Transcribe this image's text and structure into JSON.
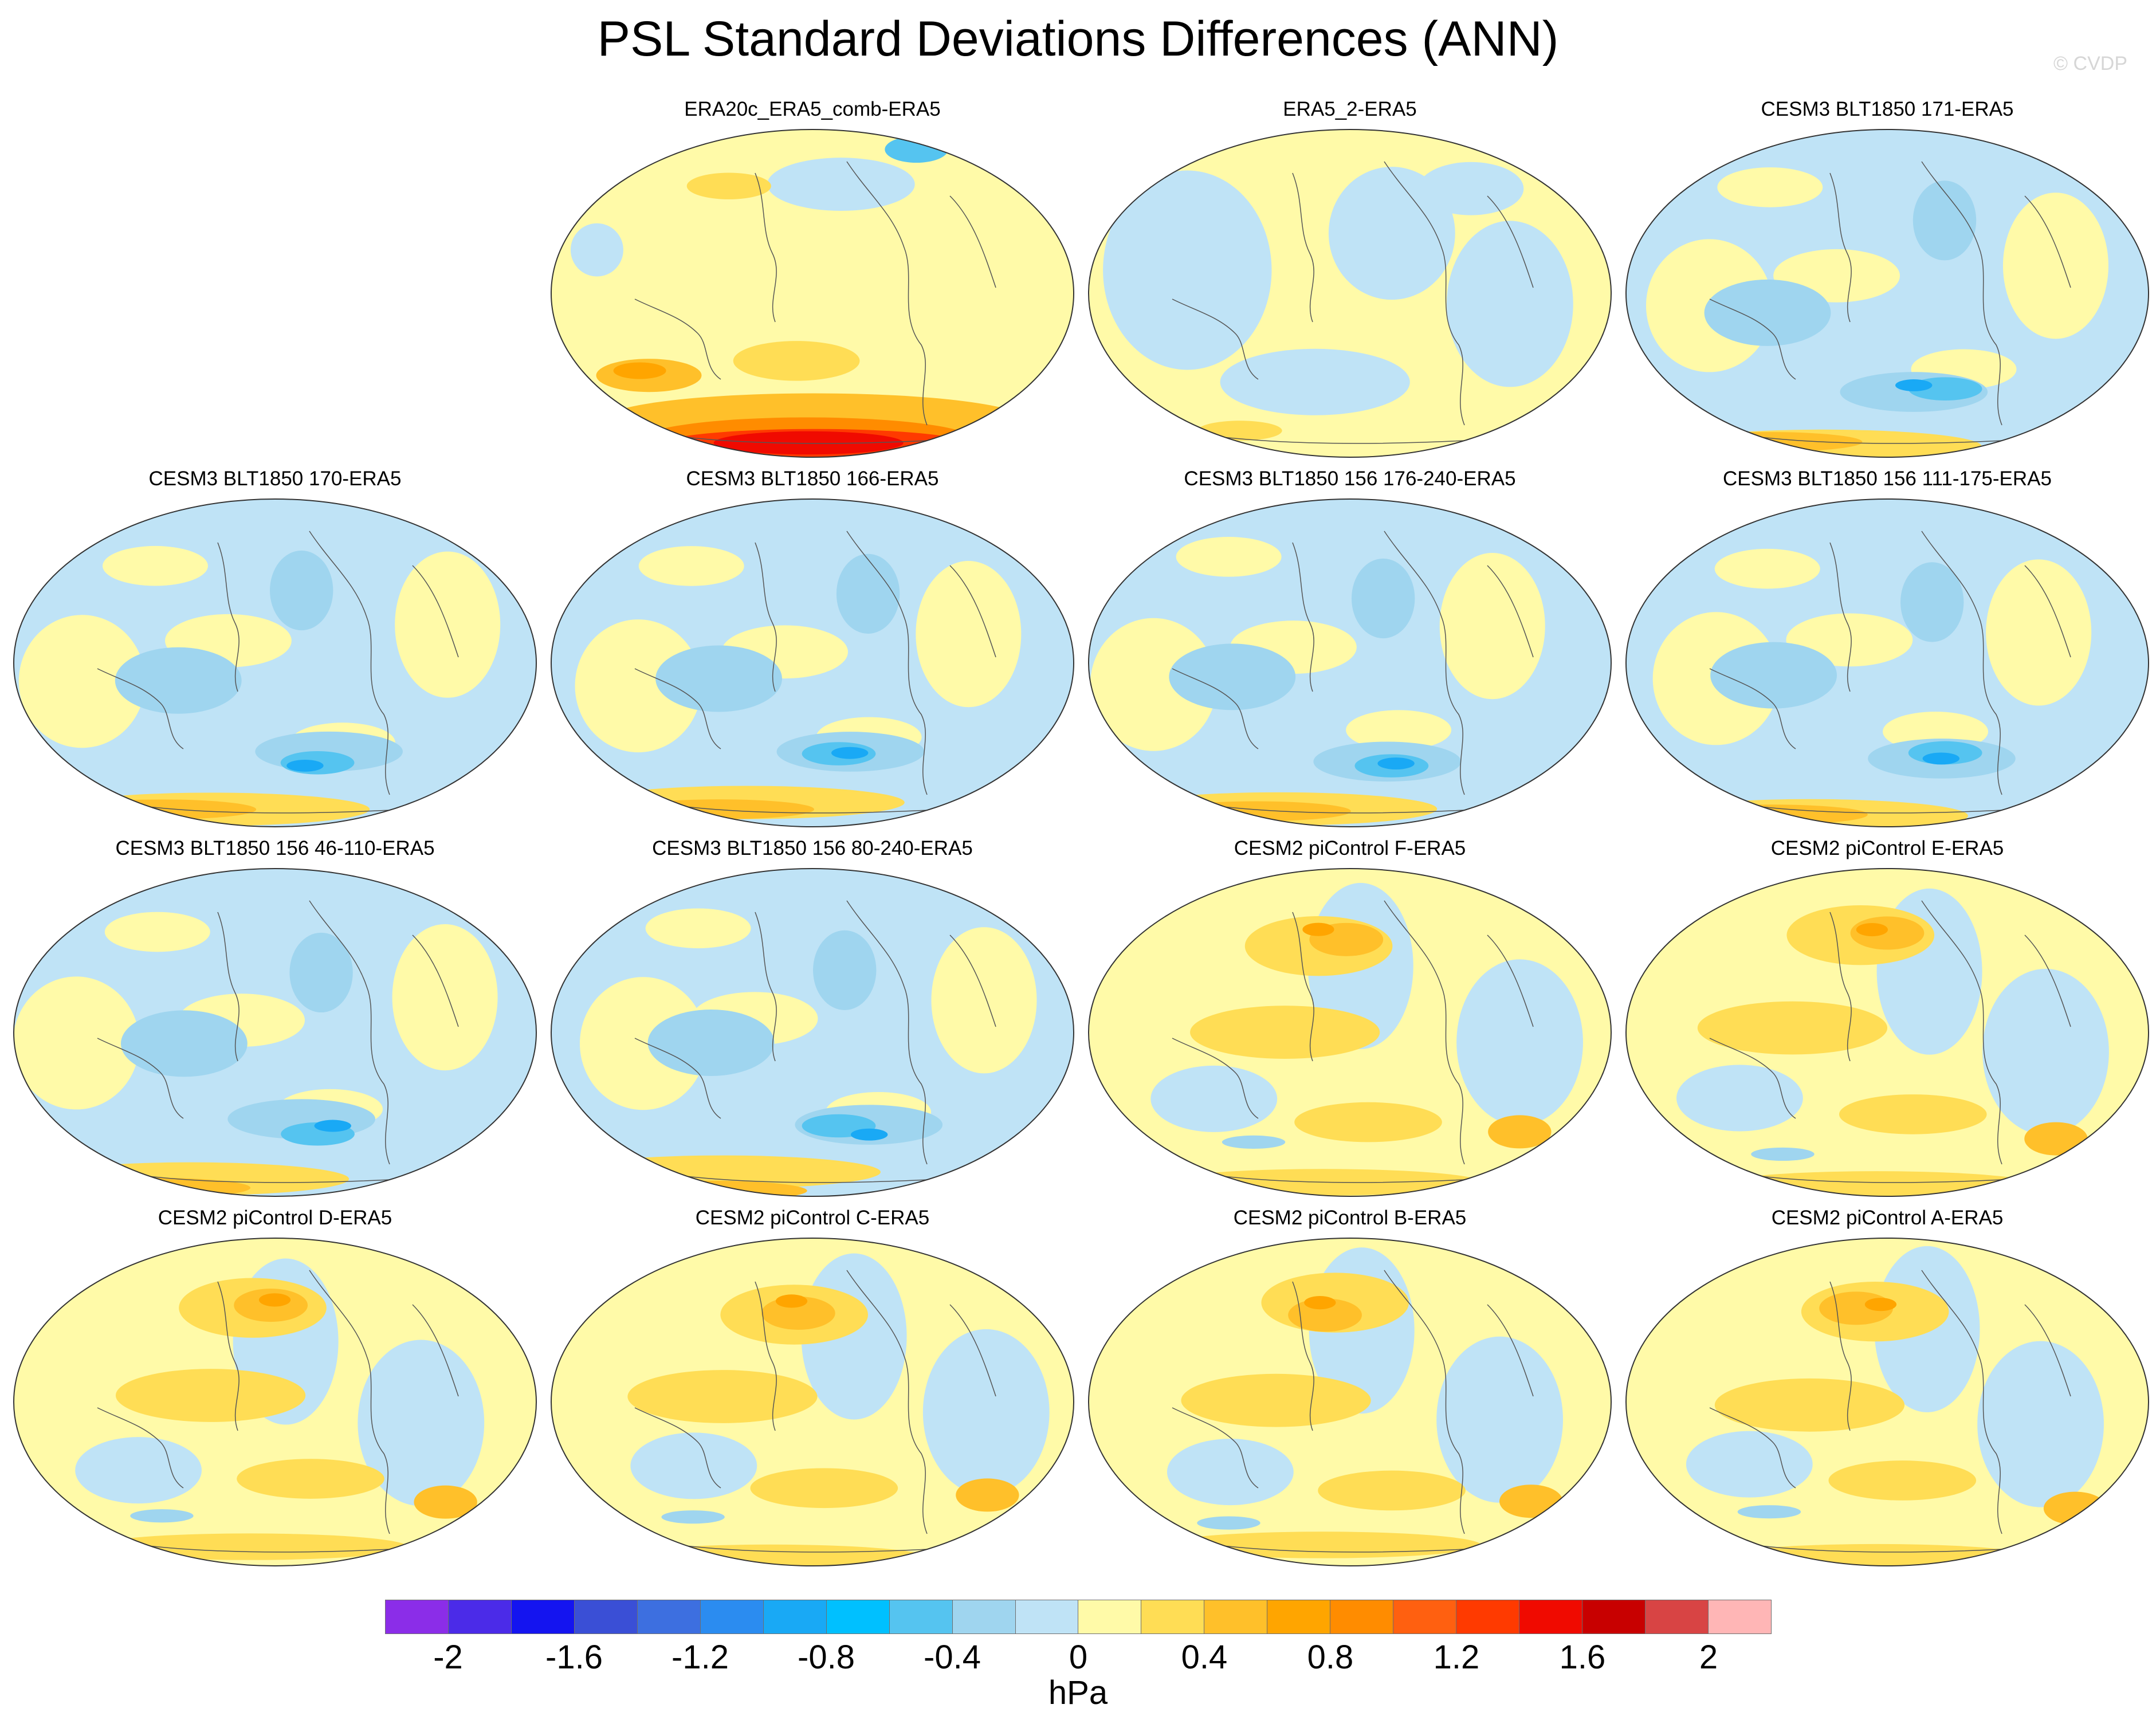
{
  "title": "PSL Standard Deviations Differences (ANN)",
  "credit": "© CVDP",
  "panels": [
    {
      "title": "ERA20c_ERA5_comb-ERA5",
      "pattern": "southern-strong-positive"
    },
    {
      "title": "ERA5_2-ERA5",
      "pattern": "near-zero-mixed"
    },
    {
      "title": "CESM3 BLT1850 171-ERA5",
      "pattern": "mostly-negative"
    },
    {
      "title": "CESM3 BLT1850 170-ERA5",
      "pattern": "mostly-negative"
    },
    {
      "title": "CESM3 BLT1850 166-ERA5",
      "pattern": "mostly-negative"
    },
    {
      "title": "CESM3 BLT1850 156 176-240-ERA5",
      "pattern": "mostly-negative"
    },
    {
      "title": "CESM3 BLT1850 156 111-175-ERA5",
      "pattern": "mostly-negative"
    },
    {
      "title": "CESM3 BLT1850 156 46-110-ERA5",
      "pattern": "mostly-negative"
    },
    {
      "title": "CESM3 BLT1850 156 80-240-ERA5",
      "pattern": "mostly-negative"
    },
    {
      "title": "CESM2 piControl F-ERA5",
      "pattern": "mostly-positive"
    },
    {
      "title": "CESM2 piControl E-ERA5",
      "pattern": "mostly-positive"
    },
    {
      "title": "CESM2 piControl D-ERA5",
      "pattern": "mostly-positive"
    },
    {
      "title": "CESM2 piControl C-ERA5",
      "pattern": "mostly-positive"
    },
    {
      "title": "CESM2 piControl B-ERA5",
      "pattern": "mostly-positive"
    },
    {
      "title": "CESM2 piControl A-ERA5",
      "pattern": "mostly-positive"
    }
  ],
  "colorbar": {
    "colors": [
      "#8b2de8",
      "#4b2be8",
      "#1414f0",
      "#3a4fd6",
      "#3d6fe0",
      "#2b8cf0",
      "#19a9f5",
      "#00c0ff",
      "#55c4f0",
      "#9fd5ef",
      "#bfe3f6",
      "#fffaa8",
      "#ffdd55",
      "#ffc02a",
      "#ffa500",
      "#ff8c00",
      "#ff6010",
      "#ff3a00",
      "#f00a00",
      "#c80000",
      "#d84444",
      "#ffb6b6"
    ],
    "labels": [
      "-2",
      "-1.6",
      "-1.2",
      "-0.8",
      "-0.4",
      "0",
      "0.4",
      "0.8",
      "1.2",
      "1.6",
      "2"
    ],
    "min": -2.2,
    "max": 2.2,
    "step": 0.2,
    "unit": "hPa"
  }
}
